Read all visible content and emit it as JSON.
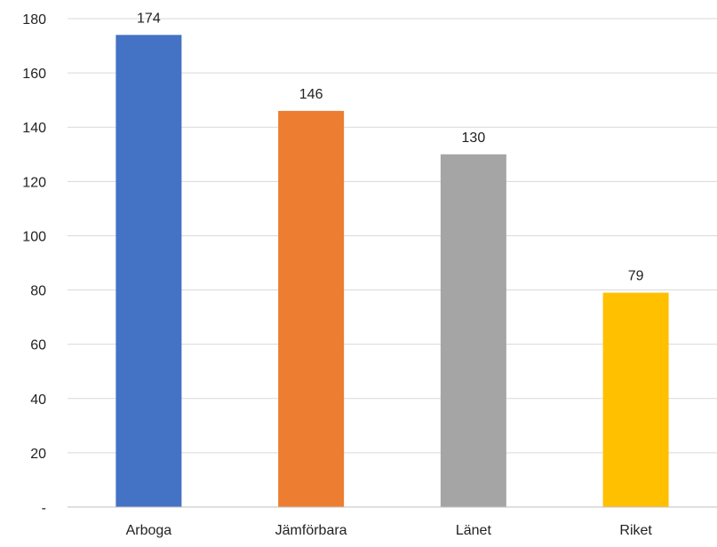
{
  "chart_data": {
    "type": "bar",
    "categories": [
      "Arboga",
      "Jämförbara",
      "Länet",
      "Riket"
    ],
    "values": [
      174,
      146,
      130,
      79
    ],
    "data_labels": [
      "174",
      "146",
      "130",
      "79"
    ],
    "colors": [
      "#4472C4",
      "#ED7D31",
      "#A5A5A5",
      "#FFC000"
    ],
    "ylim": [
      0,
      180
    ],
    "yticks": [
      0,
      20,
      40,
      60,
      80,
      100,
      120,
      140,
      160,
      180
    ],
    "ytick_labels": [
      "-",
      "20",
      "40",
      "60",
      "80",
      "100",
      "120",
      "140",
      "160",
      "180"
    ],
    "grid": true,
    "legend": "none",
    "title": "",
    "xlabel": "",
    "ylabel": ""
  }
}
